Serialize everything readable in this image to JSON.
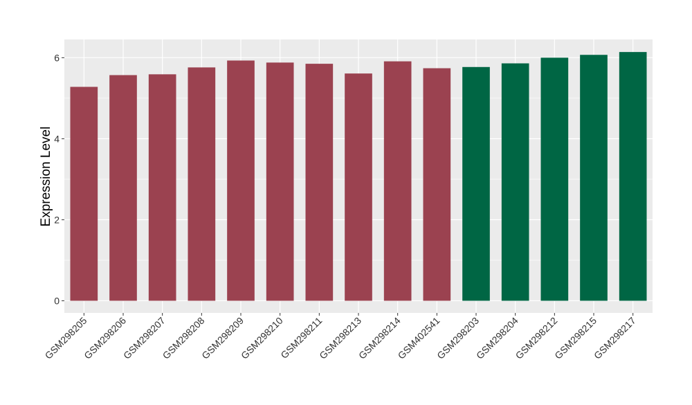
{
  "chart_data": {
    "type": "bar",
    "title": "",
    "xlabel": "",
    "ylabel": "Expression Level",
    "ylim": [
      -0.3,
      6.45
    ],
    "yticks": [
      0,
      2,
      4,
      6
    ],
    "grid": true,
    "categories": [
      "GSM298205",
      "GSM298206",
      "GSM298207",
      "GSM298208",
      "GSM298209",
      "GSM298210",
      "GSM298211",
      "GSM298213",
      "GSM298214",
      "GSM402541",
      "GSM298203",
      "GSM298204",
      "GSM298212",
      "GSM298215",
      "GSM298217"
    ],
    "values": [
      5.28,
      5.57,
      5.59,
      5.76,
      5.93,
      5.88,
      5.85,
      5.61,
      5.91,
      5.74,
      5.77,
      5.86,
      6.0,
      6.07,
      6.14
    ],
    "groups": [
      0,
      0,
      0,
      0,
      0,
      0,
      0,
      0,
      0,
      0,
      1,
      1,
      1,
      1,
      1
    ],
    "colors": {
      "group0": "#9b4250",
      "group1": "#006644",
      "panel": "#ebebeb",
      "grid": "#ffffff"
    }
  }
}
